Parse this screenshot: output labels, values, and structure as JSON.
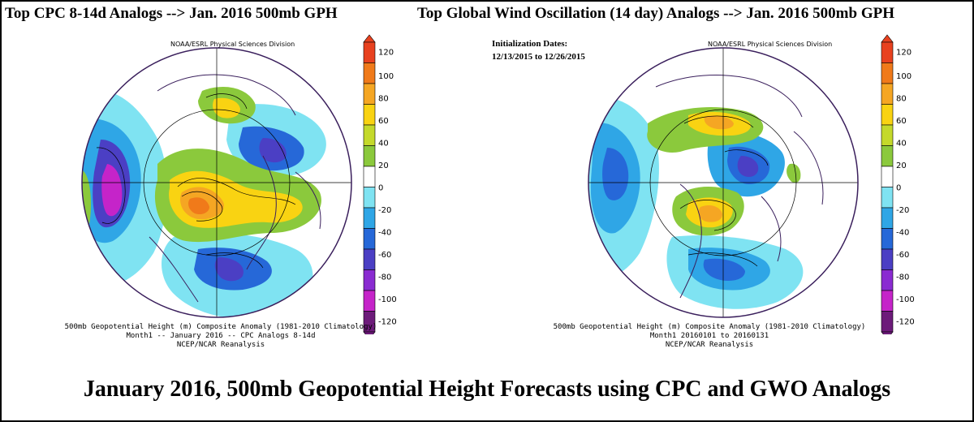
{
  "panels": [
    {
      "title": "Top CPC 8-14d Analogs --> Jan. 2016 500mb GPH",
      "credit": "NOAA/ESRL Physical Sciences Division",
      "caption_line1": "500mb Geopotential Height (m) Composite Anomaly (1981-2010 Climatology)",
      "caption_line2": "Month1    -- January 2016 -- CPC Analogs 8-14d",
      "caption_line3": "NCEP/NCAR Reanalysis"
    },
    {
      "title": "Top Global Wind Oscillation (14 day) Analogs --> Jan. 2016 500mb GPH",
      "credit": "NOAA/ESRL Physical Sciences Division",
      "init_label": "Initialization Dates:",
      "init_range": "12/13/2015 to 12/26/2015",
      "caption_line1": "500mb Geopotential Height (m) Composite Anomaly (1981-2010 Climatology)",
      "caption_line2": "Month1   20160101 to 20160131",
      "caption_line3": "NCEP/NCAR Reanalysis"
    }
  ],
  "colorbar": {
    "labels": [
      "120",
      "100",
      "80",
      "60",
      "40",
      "20",
      "0",
      "-20",
      "-40",
      "-60",
      "-80",
      "-100",
      "-120"
    ],
    "colors": [
      "#e8411f",
      "#f07a1a",
      "#f5a623",
      "#f9d312",
      "#c4d92b",
      "#8bc93c",
      "#ffffff",
      "#7fe3f2",
      "#2fa6e6",
      "#2668d8",
      "#4b3fc4",
      "#8a2bd1",
      "#c524c9",
      "#6d1b7a"
    ]
  },
  "footer": "January 2016, 500mb Geopotential Height Forecasts using CPC and GWO Analogs"
}
